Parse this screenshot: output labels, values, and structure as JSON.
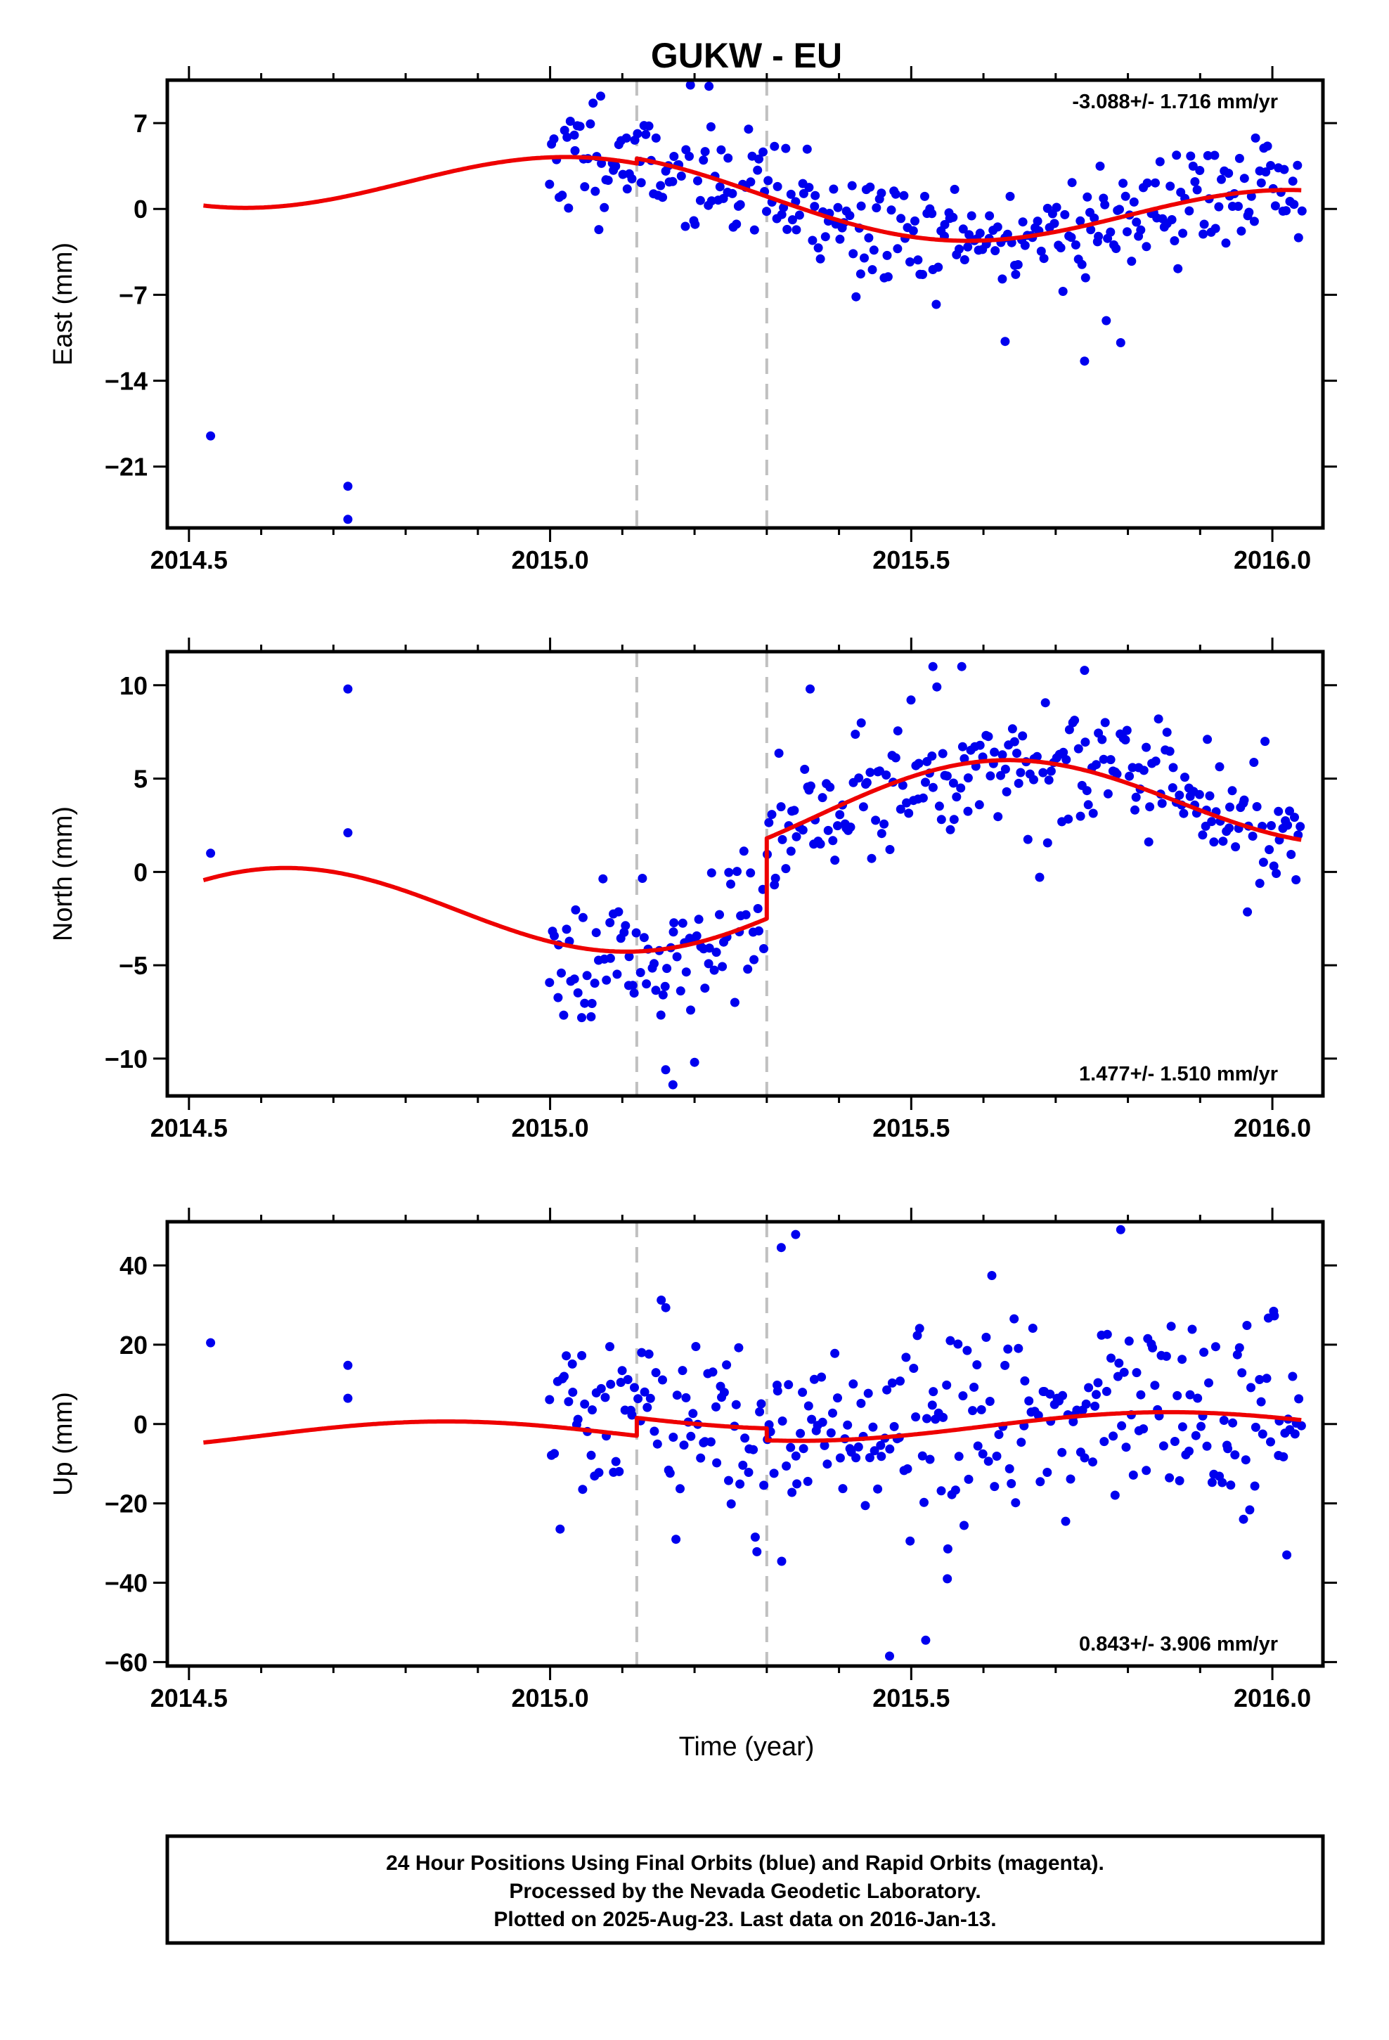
{
  "title": "GUKW - EU",
  "xlabel": "Time (year)",
  "footer": {
    "line1": "24 Hour Positions Using Final Orbits (blue) and Rapid Orbits (magenta).",
    "line2": "Processed by the Nevada Geodetic Laboratory.",
    "line3": "Plotted on 2025-Aug-23. Last data on 2016-Jan-13."
  },
  "colors": {
    "points": "#0000ee",
    "fit": "#ee0000",
    "steps": "#c0c0c0",
    "frame": "#000000"
  },
  "chart_data": [
    {
      "type": "scatter",
      "ylabel": "East (mm)",
      "rate_text": "-3.088+/- 1.716 mm/yr",
      "rate_position": "top-right",
      "xlim": [
        2014.47,
        2016.07
      ],
      "ylim": [
        -26,
        10.5
      ],
      "xticks": [
        2014.5,
        2015.0,
        2015.5,
        2016.0
      ],
      "xtick_labels": [
        "2014.5",
        "2015.0",
        "2015.5",
        "2016.0"
      ],
      "yticks": [
        7,
        0,
        -7,
        -14,
        -21
      ],
      "ytick_labels": [
        "7",
        "0",
        "−7",
        "−14",
        "−21"
      ],
      "steps": [
        2015.12,
        2015.3
      ],
      "grid": false,
      "early_points": [
        [
          2014.53,
          -18.5
        ],
        [
          2014.72,
          -22.6
        ],
        [
          2014.72,
          -25.3
        ]
      ],
      "fit_model": {
        "offset": 0.0,
        "rate": -3.088,
        "t0": 2015.5,
        "ann_amp": 2.8,
        "ann_peak": 2015.05,
        "step_sizes": [
          0.4,
          0.0
        ]
      },
      "fit_range": [
        2014.52,
        2016.04
      ],
      "data_range": [
        2015.0,
        2016.04
      ],
      "scatter_sd": 2.3,
      "outliers": [
        [
          2015.07,
          9.2
        ],
        [
          2015.13,
          6.8
        ],
        [
          2015.22,
          10.0
        ],
        [
          2015.63,
          -10.8
        ],
        [
          2015.74,
          -12.4
        ],
        [
          2015.79,
          -10.9
        ],
        [
          2015.77,
          -9.1
        ],
        [
          2015.43,
          -5.3
        ]
      ],
      "n_points": 320,
      "seed": 11
    },
    {
      "type": "scatter",
      "ylabel": "North (mm)",
      "rate_text": "1.477+/- 1.510 mm/yr",
      "rate_position": "bottom-right",
      "xlim": [
        2014.47,
        2016.07
      ],
      "ylim": [
        -12,
        11.8
      ],
      "xticks": [
        2014.5,
        2015.0,
        2015.5,
        2016.0
      ],
      "xtick_labels": [
        "2014.5",
        "2015.0",
        "2015.5",
        "2016.0"
      ],
      "yticks": [
        10,
        5,
        0,
        -5,
        -10
      ],
      "ytick_labels": [
        "10",
        "5",
        "0",
        "−5",
        "−10"
      ],
      "steps": [
        2015.12,
        2015.3
      ],
      "grid": false,
      "early_points": [
        [
          2014.53,
          1.0
        ],
        [
          2014.72,
          9.8
        ],
        [
          2014.72,
          2.1
        ]
      ],
      "fit_model": {
        "offset": -1.1,
        "rate": 1.477,
        "t0": 2015.5,
        "ann_amp": 2.6,
        "ann_peak": 2015.62,
        "step_sizes": [
          0.0,
          4.3
        ]
      },
      "fit_range": [
        2014.52,
        2016.04
      ],
      "data_range": [
        2015.0,
        2016.04
      ],
      "scatter_sd": 1.7,
      "outliers": [
        [
          2015.53,
          11.0
        ],
        [
          2015.57,
          11.0
        ],
        [
          2015.74,
          10.8
        ],
        [
          2015.36,
          9.8
        ],
        [
          2015.17,
          -11.4
        ],
        [
          2015.16,
          -10.6
        ],
        [
          2015.2,
          -10.2
        ],
        [
          2015.91,
          7.1
        ]
      ],
      "n_points": 320,
      "seed": 23
    },
    {
      "type": "scatter",
      "ylabel": "Up (mm)",
      "rate_text": "0.843+/- 3.906 mm/yr",
      "rate_position": "bottom-right",
      "xlim": [
        2014.47,
        2016.07
      ],
      "ylim": [
        -61,
        51
      ],
      "xticks": [
        2014.5,
        2015.0,
        2015.5,
        2016.0
      ],
      "xtick_labels": [
        "2014.5",
        "2015.0",
        "2015.5",
        "2016.0"
      ],
      "yticks": [
        40,
        20,
        0,
        -20,
        -40,
        -60
      ],
      "ytick_labels": [
        "40",
        "20",
        "0",
        "−20",
        "−40",
        "−60"
      ],
      "steps": [
        2015.12,
        2015.3
      ],
      "grid": false,
      "early_points": [
        [
          2014.53,
          20.5
        ],
        [
          2014.72,
          14.8
        ],
        [
          2014.72,
          6.5
        ]
      ],
      "fit_model": {
        "offset": -2.2,
        "rate": 0.843,
        "t0": 2015.5,
        "ann_amp": 3.4,
        "ann_peak": 2015.85,
        "step_sizes": [
          4.5,
          -3.0
        ]
      },
      "fit_range": [
        2014.52,
        2016.04
      ],
      "data_range": [
        2015.0,
        2016.04
      ],
      "scatter_sd": 12.5,
      "outliers": [
        [
          2015.79,
          49.0
        ],
        [
          2015.34,
          47.8
        ],
        [
          2015.32,
          44.5
        ],
        [
          2015.47,
          -58.5
        ],
        [
          2015.52,
          -54.5
        ],
        [
          2015.55,
          -39.0
        ],
        [
          2016.02,
          -33.0
        ],
        [
          2015.96,
          -24.0
        ]
      ],
      "n_points": 320,
      "seed": 37
    }
  ]
}
